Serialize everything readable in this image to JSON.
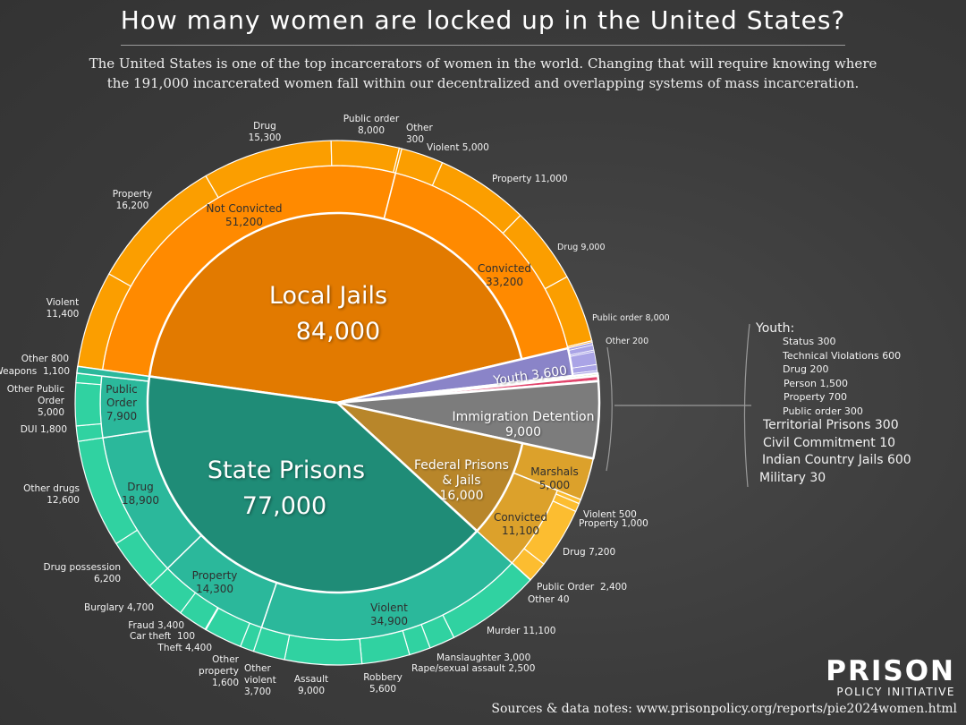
{
  "title": "How many women are locked up in the United States?",
  "subtitle": [
    "The United States is one of the top incarcerators of women in the world. Changing that will require knowing where",
    "the 191,000 incarcerated women fall within our decentralized and overlapping systems of mass incarceration."
  ],
  "logo": {
    "line1": "PRISON",
    "line2": "POLICY INITIATIVE"
  },
  "sources": "Sources & data notes: www.prisonpolicy.org/reports/pie2024women.html",
  "chart_data": {
    "type": "pie",
    "subtype": "nested-sunburst",
    "total": 191000,
    "systems": [
      {
        "name": "Local Jails",
        "value": 84000,
        "colors": [
          "#e27a00",
          "#ff8a00",
          "#fb9e00"
        ],
        "children": [
          {
            "name": "Not Convicted",
            "value": 51200,
            "children": [
              {
                "name": "Violent",
                "value": 11400
              },
              {
                "name": "Property",
                "value": 16200
              },
              {
                "name": "Drug",
                "value": 15300
              },
              {
                "name": "Public order",
                "value": 8000
              },
              {
                "name": "Other",
                "value": 300
              }
            ]
          },
          {
            "name": "Convicted",
            "value": 33200,
            "children": [
              {
                "name": "Violent",
                "value": 5000
              },
              {
                "name": "Property",
                "value": 11000
              },
              {
                "name": "Drug",
                "value": 9000
              },
              {
                "name": "Public order",
                "value": 8000
              },
              {
                "name": "Other",
                "value": 200
              }
            ]
          }
        ]
      },
      {
        "name": "Youth",
        "value": 3600,
        "colors": [
          "#8a84c8",
          "#8a84c8",
          "#aaa4e6"
        ],
        "outer": [
          {
            "name": "Status",
            "value": 300
          },
          {
            "name": "Technical Violations",
            "value": 600
          },
          {
            "name": "Drug",
            "value": 200
          },
          {
            "name": "Person",
            "value": 1500
          },
          {
            "name": "Property",
            "value": 700
          },
          {
            "name": "Public order",
            "value": 300
          }
        ]
      },
      {
        "name": "Territorial Prisons",
        "value": 300,
        "colors": [
          "#b9d98a",
          "#b9d98a",
          "#b9d98a"
        ]
      },
      {
        "name": "Civil Commitment",
        "value": 10,
        "colors": [
          "#9ad0e0",
          "#9ad0e0",
          "#9ad0e0"
        ]
      },
      {
        "name": "Indian Country Jails",
        "value": 600,
        "colors": [
          "#e2446c",
          "#e2446c",
          "#e2446c"
        ]
      },
      {
        "name": "Military",
        "value": 30,
        "colors": [
          "#c0c0c0",
          "#c0c0c0",
          "#c0c0c0"
        ]
      },
      {
        "name": "Immigration Detention",
        "value": 9000,
        "colors": [
          "#7c7c7c",
          "#7c7c7c",
          "#7c7c7c"
        ]
      },
      {
        "name": "Federal Prisons & Jails",
        "value": 16000,
        "colors": [
          "#b8862a",
          "#dca12b",
          "#fcbd30"
        ],
        "children": [
          {
            "name": "Marshals",
            "value": 5000
          },
          {
            "name": "Convicted",
            "value": 11100,
            "children": [
              {
                "name": "Violent",
                "value": 500
              },
              {
                "name": "Property",
                "value": 1000
              },
              {
                "name": "Drug",
                "value": 7200
              },
              {
                "name": "Public Order",
                "value": 2400
              },
              {
                "name": "Other",
                "value": 40
              }
            ]
          }
        ]
      },
      {
        "name": "State Prisons",
        "value": 77000,
        "colors": [
          "#1f8c77",
          "#2bb89b",
          "#30d2a1"
        ],
        "children": [
          {
            "name": "Violent",
            "value": 34900,
            "children": [
              {
                "name": "Murder",
                "value": 11100
              },
              {
                "name": "Manslaughter",
                "value": 3000
              },
              {
                "name": "Rape/sexual assault",
                "value": 2500
              },
              {
                "name": "Robbery",
                "value": 5600
              },
              {
                "name": "Assault",
                "value": 9000
              },
              {
                "name": "Other violent",
                "value": 3700
              }
            ]
          },
          {
            "name": "Property",
            "value": 14300,
            "children": [
              {
                "name": "Other property",
                "value": 1600
              },
              {
                "name": "Theft",
                "value": 4400
              },
              {
                "name": "Car theft",
                "value": 100
              },
              {
                "name": "Fraud",
                "value": 3400
              },
              {
                "name": "Burglary",
                "value": 4700
              }
            ]
          },
          {
            "name": "Drug",
            "value": 18900,
            "children": [
              {
                "name": "Drug possession",
                "value": 6200
              },
              {
                "name": "Other drugs",
                "value": 12600
              }
            ]
          },
          {
            "name": "Public Order",
            "value": 7900,
            "children": [
              {
                "name": "DUI",
                "value": 1800
              },
              {
                "name": "Other Public Order",
                "value": 5000
              },
              {
                "name": "Weapons",
                "value": 1100
              }
            ]
          },
          {
            "name": "Other",
            "value": 800
          }
        ]
      }
    ]
  }
}
